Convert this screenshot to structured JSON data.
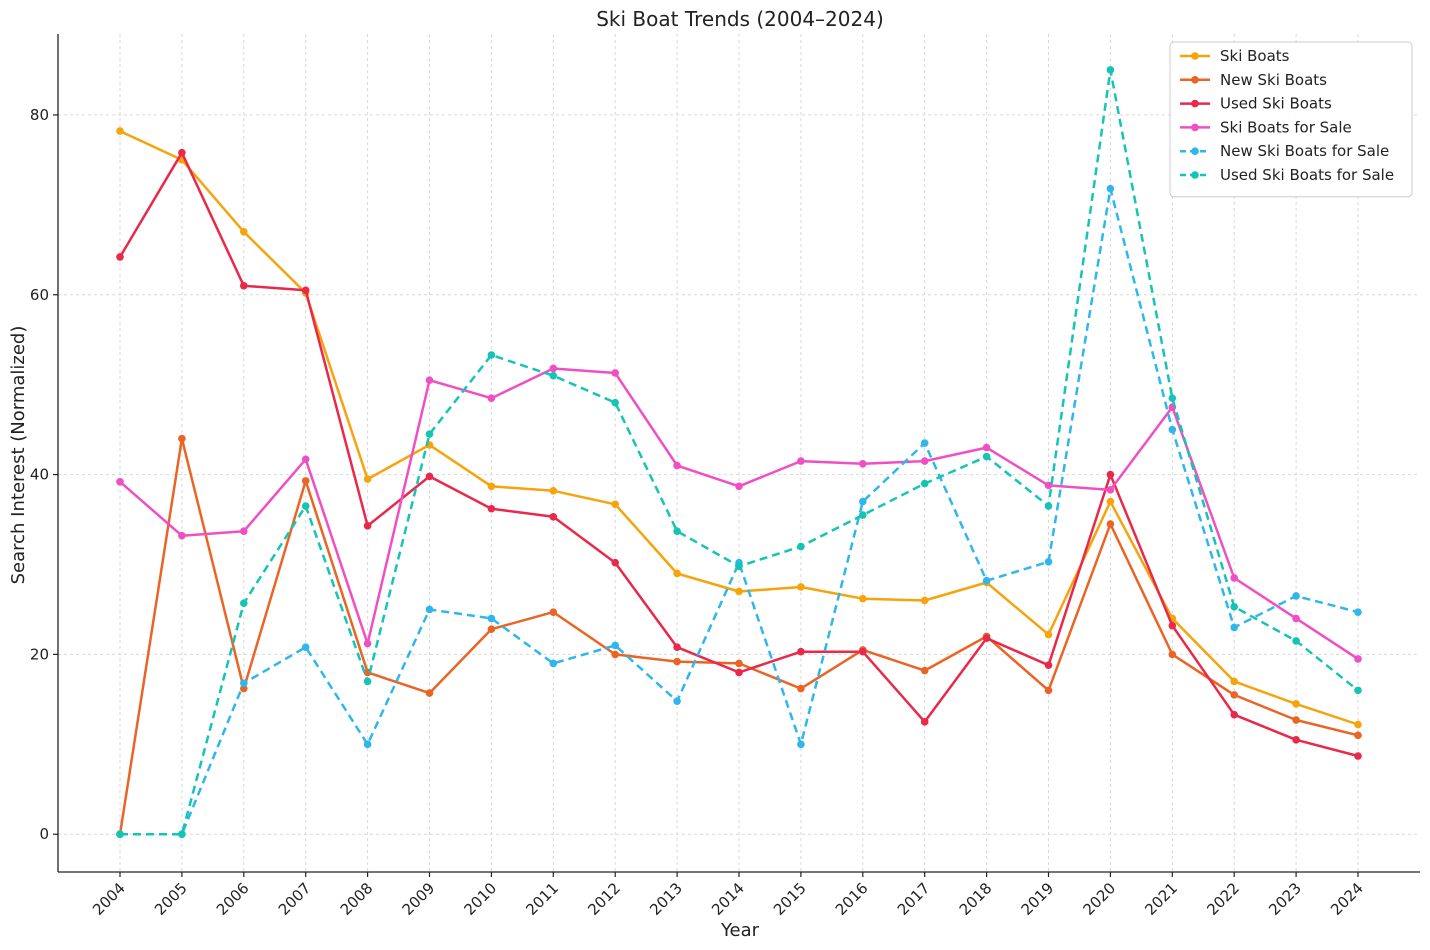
{
  "chart_data": {
    "type": "line",
    "title": "Ski Boat Trends (2004–2024)",
    "xlabel": "Year",
    "ylabel": "Search Interest (Normalized)",
    "categories": [
      "2004",
      "2005",
      "2006",
      "2007",
      "2008",
      "2009",
      "2010",
      "2011",
      "2012",
      "2013",
      "2014",
      "2015",
      "2016",
      "2017",
      "2018",
      "2019",
      "2020",
      "2021",
      "2022",
      "2023",
      "2024"
    ],
    "ylim": [
      -4.2,
      89
    ],
    "yticks": [
      0,
      20,
      40,
      60,
      80
    ],
    "grid": true,
    "legend_position": "top-right",
    "series": [
      {
        "name": "Ski Boats",
        "color": "#f5a40c",
        "style": "solid",
        "values": [
          78.2,
          75.0,
          67.0,
          60.2,
          39.5,
          43.3,
          38.7,
          38.2,
          36.7,
          29.0,
          27.0,
          27.5,
          26.2,
          26.0,
          28.0,
          22.2,
          37.0,
          24.0,
          17.0,
          14.5,
          12.2
        ]
      },
      {
        "name": "New Ski Boats",
        "color": "#ea6426",
        "style": "solid",
        "values": [
          0.0,
          44.0,
          16.2,
          39.3,
          18.0,
          15.7,
          22.8,
          24.7,
          20.0,
          19.2,
          19.0,
          16.2,
          20.5,
          18.2,
          22.0,
          16.0,
          34.5,
          20.0,
          15.5,
          12.7,
          11.0
        ]
      },
      {
        "name": "Used Ski Boats",
        "color": "#e8294a",
        "style": "solid",
        "values": [
          64.2,
          75.8,
          61.0,
          60.5,
          34.3,
          39.8,
          36.2,
          35.3,
          30.2,
          20.8,
          18.0,
          20.3,
          20.3,
          12.5,
          21.8,
          18.8,
          40.0,
          23.2,
          13.3,
          10.5,
          8.7
        ]
      },
      {
        "name": "Ski Boats for Sale",
        "color": "#f04fc3",
        "style": "solid",
        "values": [
          39.2,
          33.2,
          33.7,
          41.7,
          21.2,
          50.5,
          48.5,
          51.8,
          51.3,
          41.0,
          38.7,
          41.5,
          41.2,
          41.5,
          43.0,
          38.8,
          38.3,
          47.5,
          28.5,
          24.0,
          19.5
        ]
      },
      {
        "name": "New Ski Boats for Sale",
        "color": "#2fb6ec",
        "style": "dashed",
        "values": [
          0.0,
          0.0,
          16.8,
          20.8,
          10.0,
          25.0,
          24.0,
          19.0,
          21.0,
          14.8,
          30.2,
          10.0,
          37.0,
          43.5,
          28.2,
          30.3,
          71.8,
          45.0,
          23.0,
          26.5,
          24.7
        ]
      },
      {
        "name": "Used Ski Boats for Sale",
        "color": "#15c4b4",
        "style": "dashed",
        "values": [
          0.0,
          0.0,
          25.7,
          36.5,
          17.0,
          44.5,
          53.3,
          51.0,
          48.0,
          33.7,
          29.8,
          32.0,
          35.5,
          39.0,
          42.0,
          36.5,
          85.0,
          48.5,
          25.3,
          21.5,
          16.0
        ]
      }
    ]
  }
}
